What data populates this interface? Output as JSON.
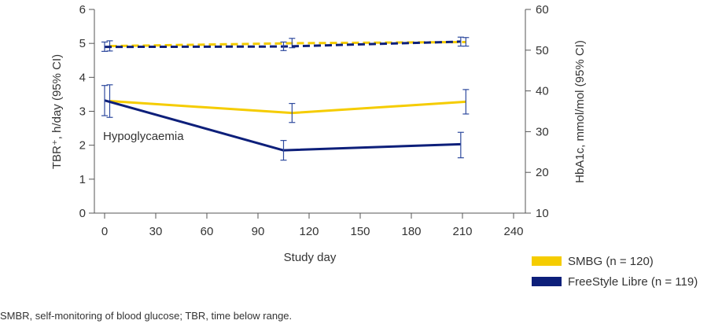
{
  "chart_data": {
    "type": "line",
    "title": "",
    "xlabel": "Study day",
    "ylabel_left": "TBR⁺, h/day (95% CI)",
    "ylabel_right": "HbA1c, mmol/mol (95% CI)",
    "xlim": [
      0,
      240
    ],
    "ylim_left": [
      0,
      6
    ],
    "ylim_right": [
      10,
      60
    ],
    "x_ticks": [
      0,
      30,
      60,
      90,
      120,
      150,
      180,
      210,
      240
    ],
    "y_ticks_left": [
      0,
      1,
      2,
      3,
      4,
      5,
      6
    ],
    "y_ticks_right": [
      10,
      20,
      30,
      40,
      50,
      60
    ],
    "annotation": "Hypoglycaemia",
    "legend_position": "bottom-right",
    "series": [
      {
        "name": "SMBG (n = 120)",
        "legend": true,
        "color": "#f5cc00",
        "axis": "left",
        "style": "solid",
        "points": [
          {
            "x": 3,
            "y": 3.3,
            "lo": 2.82,
            "hi": 3.78
          },
          {
            "x": 110,
            "y": 2.95,
            "lo": 2.67,
            "hi": 3.23
          },
          {
            "x": 212,
            "y": 3.28,
            "lo": 2.92,
            "hi": 3.64
          }
        ]
      },
      {
        "name": "FreeStyle Libre (n = 119)",
        "legend": true,
        "color": "#0d1f7a",
        "axis": "left",
        "style": "solid",
        "points": [
          {
            "x": 0,
            "y": 3.32,
            "lo": 2.87,
            "hi": 3.76
          },
          {
            "x": 105,
            "y": 1.85,
            "lo": 1.56,
            "hi": 2.14
          },
          {
            "x": 209,
            "y": 2.03,
            "lo": 1.63,
            "hi": 2.38
          }
        ]
      },
      {
        "name": "SMBG HbA1c",
        "legend": false,
        "color": "#f5cc00",
        "axis": "right",
        "style": "dashed",
        "points": [
          {
            "x": 3,
            "y": 51.0,
            "lo": 49.8,
            "hi": 52.3
          },
          {
            "x": 110,
            "y": 51.7,
            "lo": 50.6,
            "hi": 52.9
          },
          {
            "x": 212,
            "y": 52.0,
            "lo": 51.0,
            "hi": 53.1
          }
        ]
      },
      {
        "name": "FreeStyle Libre HbA1c",
        "legend": false,
        "color": "#0d1f7a",
        "axis": "right",
        "style": "dashed",
        "points": [
          {
            "x": 0,
            "y": 50.8,
            "lo": 49.7,
            "hi": 52.0
          },
          {
            "x": 105,
            "y": 50.9,
            "lo": 49.9,
            "hi": 52.0
          },
          {
            "x": 209,
            "y": 52.1,
            "lo": 51.0,
            "hi": 53.2
          }
        ]
      }
    ]
  },
  "footnote": "SMBR, self-monitoring of blood glucose; TBR, time below range."
}
